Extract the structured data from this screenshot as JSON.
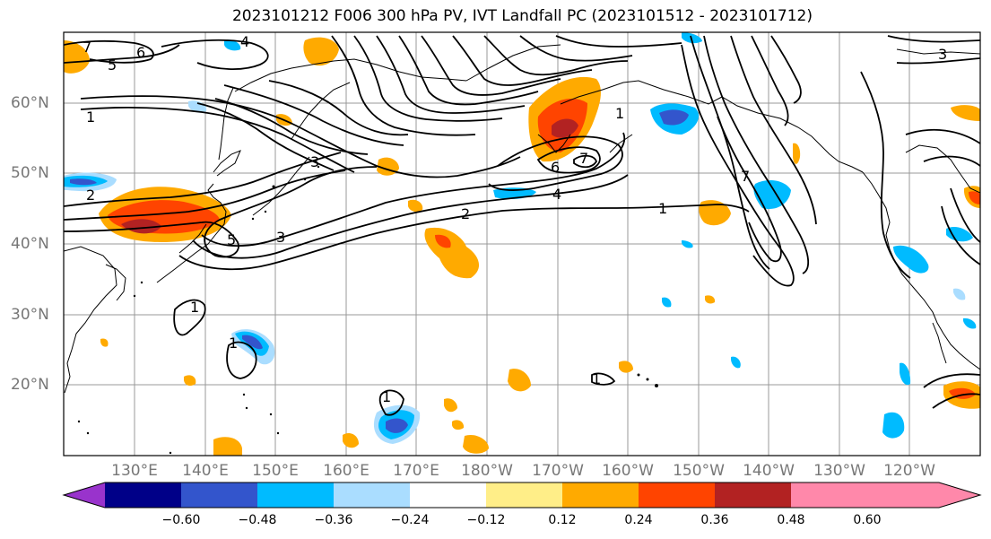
{
  "title": "2023101212 F006 300 hPa PV, IVT Landfall PC (2023101512 - 2023101712)",
  "lat_labels": [
    "60°N",
    "50°N",
    "40°N",
    "30°N",
    "20°N"
  ],
  "lon_labels": [
    "130°E",
    "140°E",
    "150°E",
    "160°E",
    "170°E",
    "180°W",
    "170°W",
    "160°W",
    "150°W",
    "140°W",
    "130°W",
    "120°W"
  ],
  "colorbar": {
    "colors": [
      "#9933cc",
      "#000088",
      "#3355cc",
      "#00bbff",
      "#aaddff",
      "#ffffff",
      "#ffee88",
      "#ffaa00",
      "#ff4400",
      "#b22222",
      "#ff88aa"
    ],
    "tick_labels": [
      "−0.60",
      "−0.48",
      "−0.36",
      "−0.24",
      "−0.12",
      "0.12",
      "0.24",
      "0.36",
      "0.48",
      "0.60"
    ]
  },
  "pv_contour_labels": [
    "7",
    "5",
    "6",
    "1",
    "2",
    "3",
    "5",
    "3",
    "4",
    "6",
    "7",
    "1",
    "4",
    "2",
    "1",
    "7",
    "1",
    "1",
    "3",
    "1",
    "1"
  ]
}
